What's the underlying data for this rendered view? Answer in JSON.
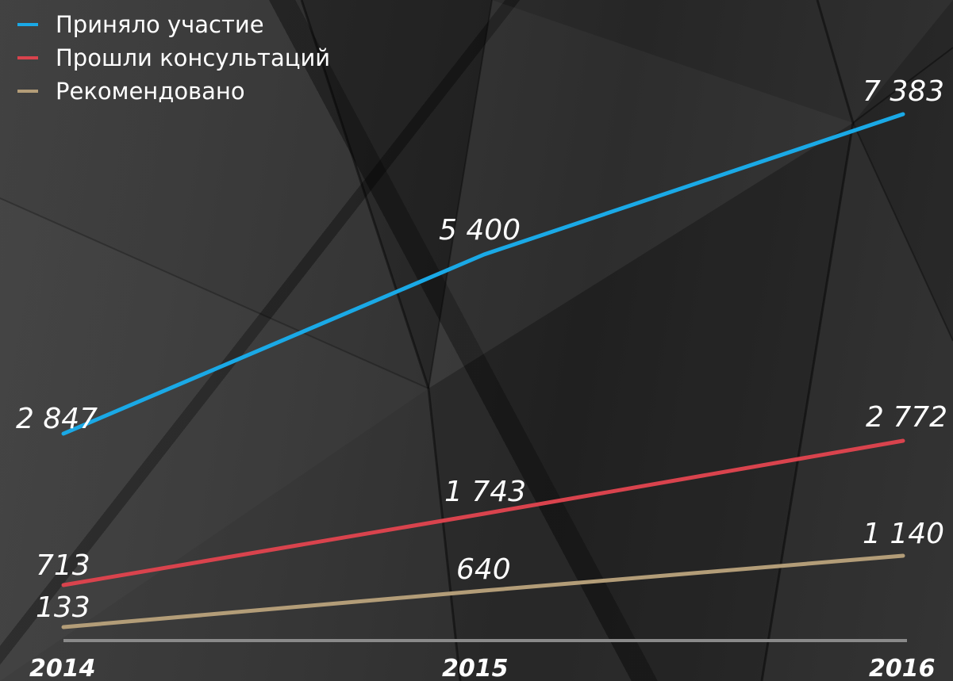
{
  "chart_data": {
    "type": "line",
    "x": [
      "2014",
      "2015",
      "2016"
    ],
    "series": [
      {
        "name": "Приняло участие",
        "values": [
          2847,
          5400,
          7383
        ],
        "labels": [
          "2 847",
          "5 400",
          "7 383"
        ],
        "color": "#1aa9e6"
      },
      {
        "name": "Прошли консультаций",
        "values": [
          713,
          1743,
          2772
        ],
        "labels": [
          "713",
          "1 743",
          "2 772"
        ],
        "color": "#d9434d"
      },
      {
        "name": "Рекомендовано",
        "values": [
          133,
          640,
          1140
        ],
        "labels": [
          "133",
          "640",
          "1 140"
        ],
        "color": "#b39d78"
      }
    ],
    "ylim": [
      0,
      7383
    ],
    "grid": false,
    "legend_position": "top-left",
    "colors": {
      "axis": "#8a8a8a",
      "text": "#ffffff"
    }
  }
}
